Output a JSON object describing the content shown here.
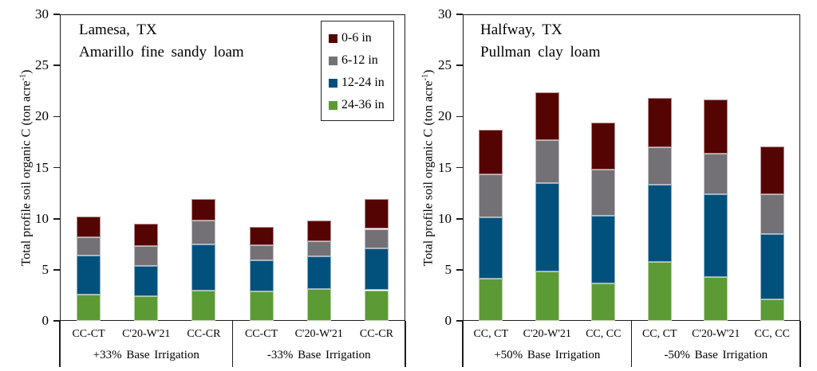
{
  "figure": {
    "background": "#ffffff",
    "axis_color": "#1c1c1c"
  },
  "chart_data": [
    {
      "type": "bar",
      "stacked": true,
      "title_lines": [
        "Lamesa, TX",
        "Amarillo fine sandy loam"
      ],
      "ylabel": {
        "text": "Total profile soil organic C (ton acre",
        "sup": "-1",
        "close": ")"
      },
      "ylim": [
        0,
        30
      ],
      "yticks": [
        0,
        5,
        10,
        15,
        20,
        25,
        30
      ],
      "grid": false,
      "categories": [
        "CC-CT",
        "C'20-W'21",
        "CC-CR",
        "CC-CT",
        "C'20-W'21",
        "CC-CR"
      ],
      "groups": [
        {
          "label": "+33% Base Irrigation",
          "span": 3
        },
        {
          "label": "-33% Base Irrigation",
          "span": 3
        }
      ],
      "series": [
        {
          "name": "0-6 in",
          "color": "#550404",
          "values": [
            2.0,
            2.2,
            2.1,
            1.8,
            2.0,
            2.9
          ]
        },
        {
          "name": "6-12 in",
          "color": "#737176",
          "values": [
            1.8,
            1.9,
            2.3,
            1.5,
            1.5,
            1.9
          ]
        },
        {
          "name": "12-24 in",
          "color": "#02517d",
          "values": [
            3.8,
            3.0,
            4.5,
            3.0,
            3.2,
            4.1
          ]
        },
        {
          "name": "24-36 in",
          "color": "#5b9a35",
          "values": [
            2.6,
            2.4,
            3.0,
            2.9,
            3.1,
            3.0
          ]
        }
      ],
      "bar_totals": [
        10.2,
        9.5,
        11.9,
        9.2,
        9.8,
        11.9
      ],
      "legend": {
        "visible": true,
        "position": "top-right"
      }
    },
    {
      "type": "bar",
      "stacked": true,
      "title_lines": [
        "Halfway, TX",
        "Pullman clay loam"
      ],
      "ylabel": {
        "text": "Total profile soil organic C (ton acre",
        "sup": "-1",
        "close": ")"
      },
      "ylim": [
        0,
        30
      ],
      "yticks": [
        0,
        5,
        10,
        15,
        20,
        25,
        30
      ],
      "grid": false,
      "categories": [
        "CC, CT",
        "C'20-W'21",
        "CC, CC",
        "CC, CT",
        "C'20-W'21",
        "CC, CC"
      ],
      "groups": [
        {
          "label": "+50% Base Irrigation",
          "span": 3
        },
        {
          "label": "-50% Base Irrigation",
          "span": 3
        }
      ],
      "series": [
        {
          "name": "0-6 in",
          "color": "#550404",
          "values": [
            4.4,
            4.7,
            4.6,
            4.8,
            5.3,
            4.7
          ]
        },
        {
          "name": "6-12 in",
          "color": "#737176",
          "values": [
            4.2,
            4.2,
            4.5,
            3.7,
            4.0,
            3.9
          ]
        },
        {
          "name": "12-24 in",
          "color": "#02517d",
          "values": [
            6.0,
            8.7,
            6.6,
            7.5,
            8.1,
            6.4
          ]
        },
        {
          "name": "24-36 in",
          "color": "#5b9a35",
          "values": [
            4.1,
            4.8,
            3.7,
            5.8,
            4.3,
            2.1
          ]
        }
      ],
      "bar_totals": [
        18.7,
        22.4,
        19.4,
        21.8,
        21.7,
        17.1
      ],
      "legend": {
        "visible": false
      }
    }
  ]
}
